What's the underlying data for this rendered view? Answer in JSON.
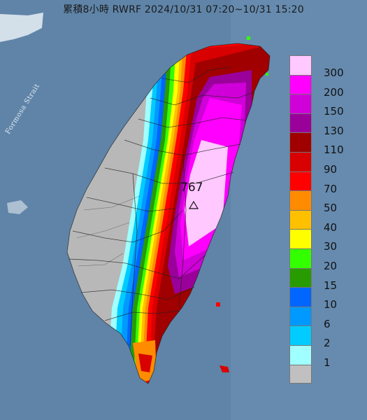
{
  "title": "累積8小時 RWRF 2024/10/31 07:20~10/31 15:20",
  "strait_label": "Formosa Strait",
  "max_value": "767",
  "legend": [
    {
      "label": "300",
      "color": "#ffc8ff"
    },
    {
      "label": "200",
      "color": "#ff00ff"
    },
    {
      "label": "150",
      "color": "#d000d8"
    },
    {
      "label": "130",
      "color": "#9a009a"
    },
    {
      "label": "110",
      "color": "#a00000"
    },
    {
      "label": "90",
      "color": "#d80000"
    },
    {
      "label": "70",
      "color": "#ff0000"
    },
    {
      "label": "50",
      "color": "#ff8c00"
    },
    {
      "label": "40",
      "color": "#ffc000"
    },
    {
      "label": "30",
      "color": "#ffff00"
    },
    {
      "label": "20",
      "color": "#33ff00"
    },
    {
      "label": "15",
      "color": "#279b00"
    },
    {
      "label": "10",
      "color": "#0066ff"
    },
    {
      "label": "6",
      "color": "#0099ff"
    },
    {
      "label": "2",
      "color": "#00ccff"
    },
    {
      "label": "1",
      "color": "#a0ffff"
    },
    {
      "label": "",
      "color": "#c0c0c0"
    }
  ]
}
